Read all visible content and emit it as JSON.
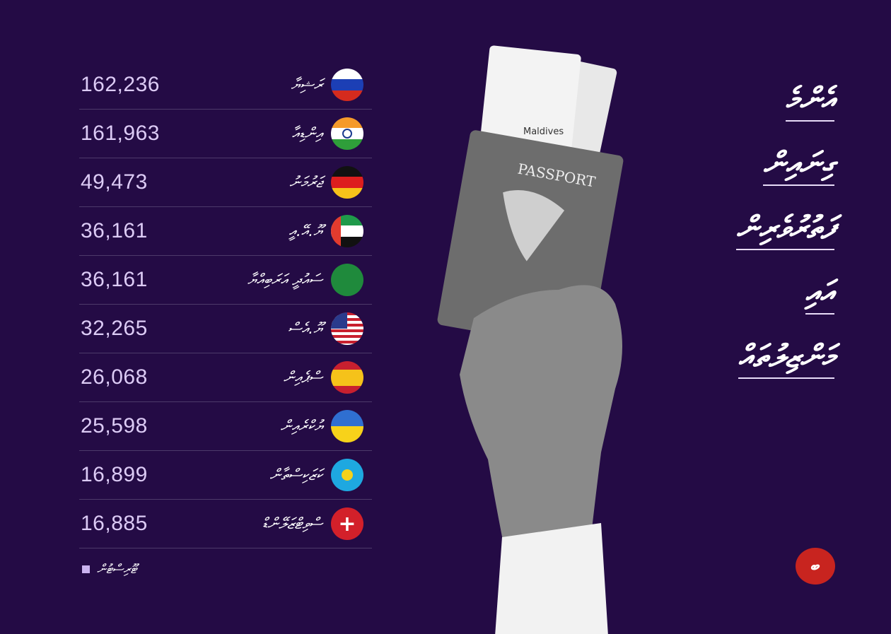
{
  "title_lines": [
    "އެންމެ",
    "ގިނައިން",
    "ފަތުރުވެރިން",
    "އައި",
    "މަންޒިލުތައް"
  ],
  "footer": {
    "source": "ޓޫރިސްޓުން"
  },
  "logo": {
    "text": "ބ"
  },
  "colors": {
    "background": "#240b45",
    "numbers": "#dccbf5",
    "logo": "#c8241f"
  },
  "chart_data": {
    "type": "table",
    "rows": [
      {
        "country": "ރަޝިޔާ",
        "value": "162,236",
        "flag": "russia"
      },
      {
        "country": "އިންޑިއާ",
        "value": "161,963",
        "flag": "india"
      },
      {
        "country": "ޖަރުމަނު",
        "value": "49,473",
        "flag": "germany"
      },
      {
        "country": "ޔޫ.އޭ.އީ",
        "value": "36,161",
        "flag": "uae"
      },
      {
        "country": "ސައުދީ އަރަބިއްޔާ",
        "value": "36,161",
        "flag": "saudi-arabia"
      },
      {
        "country": "ޔޫ.އެސް",
        "value": "32,265",
        "flag": "usa"
      },
      {
        "country": "ސްޕެއިން",
        "value": "26,068",
        "flag": "spain"
      },
      {
        "country": "ޔުކްރެއިން",
        "value": "25,598",
        "flag": "ukraine"
      },
      {
        "country": "ކަޒަކިސްތާން",
        "value": "16,899",
        "flag": "kazakhstan"
      },
      {
        "country": "ސްވިޓްޒަލޭންޑް",
        "value": "16,885",
        "flag": "switzerland"
      }
    ]
  },
  "photo": {
    "passport_label": "PASSPORT",
    "ticket_label": "Maldives"
  }
}
